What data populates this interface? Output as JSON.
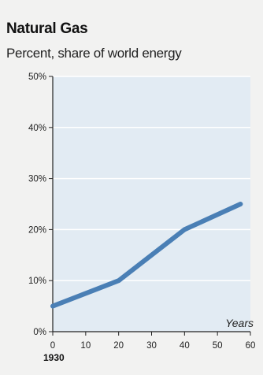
{
  "chart_data": {
    "type": "line",
    "title": "Natural Gas",
    "subtitle": "Percent, share of world energy",
    "xlabel": "Years",
    "x_base_label": "1930",
    "x": [
      0,
      20,
      30,
      40,
      57
    ],
    "xlim": [
      0,
      60
    ],
    "x_ticks": [
      0,
      10,
      20,
      30,
      40,
      50,
      60
    ],
    "ylim": [
      0,
      50
    ],
    "y_ticks": [
      0,
      10,
      20,
      30,
      40,
      50
    ],
    "y_tick_labels": [
      "0%",
      "10%",
      "20%",
      "30%",
      "40%",
      "50%"
    ],
    "series": [
      {
        "values": [
          5,
          10,
          15,
          20,
          25
        ]
      }
    ],
    "grid": true,
    "colors": {
      "line": "#4a7fb5",
      "plot_background": "#e2ebf3",
      "gridline": "#ffffff",
      "axis": "#222222"
    }
  }
}
